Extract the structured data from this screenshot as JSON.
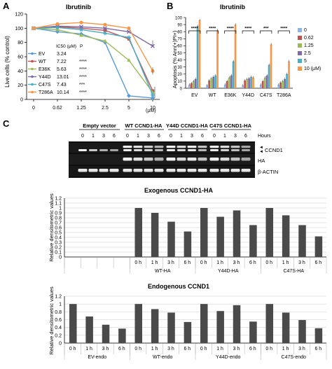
{
  "panel_letters": {
    "a": "A",
    "b": "B",
    "c": "C"
  },
  "panel_a": {
    "title": "Ibrutinib",
    "ylabel": "Live cells (% control)",
    "xunit": "(μM)",
    "legend_header": {
      "ic50": "IC50 (μM)",
      "p": "P"
    },
    "legend": [
      {
        "name": "EV",
        "ic50": "3.24",
        "p": "",
        "color": "#5b9bd5"
      },
      {
        "name": "WT",
        "ic50": "7.22",
        "p": "****",
        "color": "#c0504d"
      },
      {
        "name": "E36K",
        "ic50": "5.63",
        "p": "****",
        "color": "#9bbb59"
      },
      {
        "name": "Y44D",
        "ic50": "13.01",
        "p": "****",
        "color": "#7f6aa6"
      },
      {
        "name": "C47S",
        "ic50": "7.43",
        "p": "***",
        "color": "#4bacc6"
      },
      {
        "name": "T286A",
        "ic50": "10.14",
        "p": "****",
        "color": "#f79646"
      }
    ]
  },
  "panel_b": {
    "title": "Ibrutinib",
    "ylabel": "Apoptosis (% Ann(+)PI+)",
    "legend": [
      {
        "name": "0",
        "color": "#8eb4e3"
      },
      {
        "name": "0.62",
        "color": "#c0504d"
      },
      {
        "name": "1.25",
        "color": "#9bbb59"
      },
      {
        "name": "2.5",
        "color": "#7f6aa6"
      },
      {
        "name": "5",
        "color": "#4bacc6"
      },
      {
        "name": "10 (μM)",
        "color": "#f79646"
      }
    ],
    "significance": [
      "****",
      "****",
      "****",
      "****",
      "***",
      "****"
    ]
  },
  "panel_c": {
    "blot_headers": [
      "Empty vector",
      "WT CCND1-HA",
      "Y44D CCND1-HA",
      "C47S CCND1-HA"
    ],
    "hours_label": "Hours",
    "hours": [
      "0",
      "1",
      "3",
      "6"
    ],
    "band_labels": [
      "CCND1",
      "HA",
      "β-ACTIN"
    ],
    "exo_title": "Exogenous CCND1-HA",
    "endo_title": "Endogenous CCND1",
    "ylabel": "Relative densitometric values",
    "exo_groups": [
      "WT-HA",
      "Y44D-HA",
      "C47S-HA"
    ],
    "endo_groups": [
      "EV-endo",
      "WT-endo",
      "Y44D-endo",
      "C47S-endo"
    ]
  },
  "chart_data": [
    {
      "type": "line",
      "title": "Ibrutinib",
      "ylabel": "Live cells (% control)",
      "xlabel": "(μM)",
      "x": [
        "0",
        "0.62",
        "1.25",
        "2.5",
        "5",
        "10"
      ],
      "ylim": [
        0,
        120
      ],
      "yticks": [
        0,
        20,
        40,
        60,
        80,
        100,
        120
      ],
      "series": [
        {
          "name": "EV",
          "values": [
            100,
            95,
            92,
            80,
            5,
            2
          ],
          "color": "#5b9bd5"
        },
        {
          "name": "WT",
          "values": [
            100,
            102,
            100,
            97,
            85,
            12
          ],
          "color": "#c0504d"
        },
        {
          "name": "E36K",
          "values": [
            100,
            98,
            90,
            82,
            55,
            10
          ],
          "color": "#9bbb59"
        },
        {
          "name": "Y44D",
          "values": [
            100,
            103,
            102,
            100,
            95,
            75
          ],
          "color": "#7f6aa6"
        },
        {
          "name": "C47S",
          "values": [
            100,
            101,
            98,
            93,
            87,
            6
          ],
          "color": "#4bacc6"
        },
        {
          "name": "T286A",
          "values": [
            100,
            106,
            108,
            105,
            100,
            40
          ],
          "color": "#f79646"
        }
      ]
    },
    {
      "type": "bar",
      "title": "Ibrutinib",
      "ylabel": "Apoptosis (% Ann(+)PI+)",
      "categories": [
        "EV",
        "WT",
        "E36K",
        "Y44D",
        "C47S",
        "T286A"
      ],
      "ylim": [
        0,
        100
      ],
      "yticks": [
        0,
        10,
        20,
        30,
        40,
        50,
        60,
        70,
        80,
        90,
        100
      ],
      "series": [
        {
          "name": "0",
          "values": [
            5,
            4,
            5,
            4,
            5,
            5
          ]
        },
        {
          "name": "0.62",
          "values": [
            7,
            11,
            10,
            11,
            10,
            8
          ]
        },
        {
          "name": "1.25",
          "values": [
            10,
            14,
            15,
            13,
            15,
            10
          ]
        },
        {
          "name": "2.5",
          "values": [
            13,
            16,
            18,
            14,
            18,
            13
          ]
        },
        {
          "name": "5",
          "values": [
            88,
            18,
            38,
            16,
            33,
            20
          ]
        },
        {
          "name": "10 (μM)",
          "values": [
            96,
            82,
            90,
            15,
            62,
            38
          ]
        }
      ]
    },
    {
      "type": "bar",
      "title": "Exogenous CCND1-HA",
      "ylabel": "Relative densitometric values",
      "categories": [
        "0 h",
        "1 h",
        "3 h",
        "6 h"
      ],
      "ylim": [
        0,
        1.2
      ],
      "yticks": [
        0,
        0.1,
        0.2,
        0.3,
        0.4,
        0.5,
        0.6,
        0.7,
        0.8,
        0.9,
        1,
        1.1,
        1.2
      ],
      "groups": [
        "",
        "WT-HA",
        "Y44D-HA",
        "C47S-HA"
      ],
      "values": [
        [
          0,
          0,
          0,
          0
        ],
        [
          1,
          0.9,
          0.72,
          0.52
        ],
        [
          1,
          0.82,
          0.95,
          0.65
        ],
        [
          1,
          0.85,
          0.65,
          0.42
        ]
      ]
    },
    {
      "type": "bar",
      "title": "Endogenous CCND1",
      "ylabel": "Relative densitometric values",
      "categories": [
        "0 h",
        "1 h",
        "3 h",
        "6 h"
      ],
      "ylim": [
        0,
        1.2
      ],
      "yticks": [
        0,
        0.2,
        0.4,
        0.6,
        0.8,
        1,
        1.2
      ],
      "groups": [
        "EV-endo",
        "WT-endo",
        "Y44D-endo",
        "C47S-endo"
      ],
      "values": [
        [
          1,
          0.68,
          0.47,
          0.37
        ],
        [
          1,
          0.87,
          0.78,
          0.54
        ],
        [
          1,
          0.82,
          0.97,
          0.55
        ],
        [
          1,
          0.78,
          0.59,
          0.38
        ]
      ]
    }
  ]
}
